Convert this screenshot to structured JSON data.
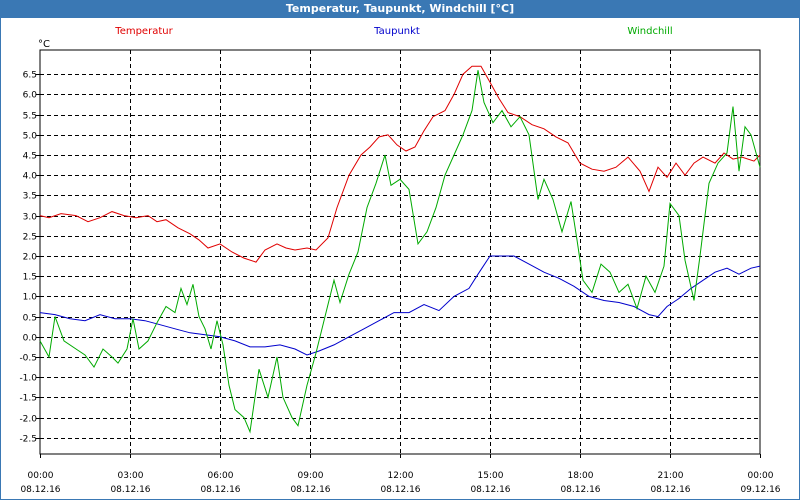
{
  "chart_data": {
    "type": "line",
    "title": "Temperatur, Taupunkt, Windchill [°C]",
    "ylabel": "°C",
    "ylim": [
      -2.9,
      7.1
    ],
    "yticks": [
      "6.5",
      "6.0",
      "5.5",
      "5.0",
      "4.5",
      "4.0",
      "3.5",
      "3.0",
      "2.5",
      "2.0",
      "1.5",
      "1.0",
      "0.5",
      "0.0",
      "-0.5",
      "-1.0",
      "-1.5",
      "-2.0",
      "-2.5"
    ],
    "xlim": [
      0,
      24
    ],
    "xticks": [
      {
        "time": "00:00",
        "date": "08.12.16"
      },
      {
        "time": "03:00",
        "date": "08.12.16"
      },
      {
        "time": "06:00",
        "date": "08.12.16"
      },
      {
        "time": "09:00",
        "date": "08.12.16"
      },
      {
        "time": "12:00",
        "date": "08.12.16"
      },
      {
        "time": "15:00",
        "date": "08.12.16"
      },
      {
        "time": "18:00",
        "date": "08.12.16"
      },
      {
        "time": "21:00",
        "date": "08.12.16"
      },
      {
        "time": "00:00",
        "date": "09.12.16"
      }
    ],
    "grid": true,
    "series": [
      {
        "name": "Temperatur",
        "color": "#e00000",
        "points": [
          [
            0,
            3.0
          ],
          [
            0.3,
            2.95
          ],
          [
            0.7,
            3.05
          ],
          [
            1.2,
            3.0
          ],
          [
            1.6,
            2.85
          ],
          [
            2.0,
            2.95
          ],
          [
            2.4,
            3.1
          ],
          [
            2.8,
            3.0
          ],
          [
            3.2,
            2.95
          ],
          [
            3.6,
            3.0
          ],
          [
            3.9,
            2.85
          ],
          [
            4.2,
            2.9
          ],
          [
            4.6,
            2.7
          ],
          [
            5.0,
            2.55
          ],
          [
            5.3,
            2.4
          ],
          [
            5.6,
            2.2
          ],
          [
            6.0,
            2.3
          ],
          [
            6.4,
            2.1
          ],
          [
            6.8,
            1.95
          ],
          [
            7.2,
            1.85
          ],
          [
            7.5,
            2.15
          ],
          [
            7.9,
            2.3
          ],
          [
            8.2,
            2.2
          ],
          [
            8.5,
            2.15
          ],
          [
            8.9,
            2.2
          ],
          [
            9.2,
            2.15
          ],
          [
            9.6,
            2.45
          ],
          [
            9.9,
            3.2
          ],
          [
            10.3,
            4.0
          ],
          [
            10.7,
            4.5
          ],
          [
            11.0,
            4.7
          ],
          [
            11.3,
            4.95
          ],
          [
            11.6,
            5.0
          ],
          [
            11.9,
            4.75
          ],
          [
            12.2,
            4.6
          ],
          [
            12.5,
            4.7
          ],
          [
            12.8,
            5.1
          ],
          [
            13.1,
            5.45
          ],
          [
            13.5,
            5.6
          ],
          [
            13.8,
            6.0
          ],
          [
            14.1,
            6.5
          ],
          [
            14.4,
            6.7
          ],
          [
            14.7,
            6.7
          ],
          [
            15.0,
            6.3
          ],
          [
            15.3,
            5.9
          ],
          [
            15.6,
            5.55
          ],
          [
            16.0,
            5.45
          ],
          [
            16.4,
            5.25
          ],
          [
            16.8,
            5.15
          ],
          [
            17.2,
            4.95
          ],
          [
            17.6,
            4.8
          ],
          [
            18.0,
            4.3
          ],
          [
            18.4,
            4.15
          ],
          [
            18.8,
            4.1
          ],
          [
            19.2,
            4.2
          ],
          [
            19.6,
            4.45
          ],
          [
            20.0,
            4.1
          ],
          [
            20.3,
            3.6
          ],
          [
            20.6,
            4.2
          ],
          [
            20.9,
            3.95
          ],
          [
            21.2,
            4.3
          ],
          [
            21.5,
            4.0
          ],
          [
            21.8,
            4.3
          ],
          [
            22.1,
            4.45
          ],
          [
            22.5,
            4.3
          ],
          [
            22.8,
            4.55
          ],
          [
            23.1,
            4.4
          ],
          [
            23.4,
            4.45
          ],
          [
            23.8,
            4.35
          ],
          [
            24.0,
            4.5
          ]
        ]
      },
      {
        "name": "Taupunkt",
        "color": "#0000cc",
        "points": [
          [
            0,
            0.6
          ],
          [
            0.5,
            0.55
          ],
          [
            1.0,
            0.45
          ],
          [
            1.5,
            0.4
          ],
          [
            2.0,
            0.55
          ],
          [
            2.5,
            0.45
          ],
          [
            3.0,
            0.45
          ],
          [
            3.5,
            0.4
          ],
          [
            4.0,
            0.3
          ],
          [
            4.5,
            0.2
          ],
          [
            5.0,
            0.1
          ],
          [
            5.5,
            0.05
          ],
          [
            6.0,
            0.0
          ],
          [
            6.5,
            -0.1
          ],
          [
            7.0,
            -0.25
          ],
          [
            7.5,
            -0.25
          ],
          [
            8.0,
            -0.2
          ],
          [
            8.5,
            -0.3
          ],
          [
            8.9,
            -0.45
          ],
          [
            9.3,
            -0.35
          ],
          [
            9.8,
            -0.2
          ],
          [
            10.3,
            0.0
          ],
          [
            10.8,
            0.2
          ],
          [
            11.3,
            0.4
          ],
          [
            11.8,
            0.6
          ],
          [
            12.3,
            0.6
          ],
          [
            12.8,
            0.8
          ],
          [
            13.3,
            0.65
          ],
          [
            13.8,
            1.0
          ],
          [
            14.3,
            1.2
          ],
          [
            14.6,
            1.55
          ],
          [
            15.0,
            2.0
          ],
          [
            15.4,
            2.0
          ],
          [
            15.8,
            2.0
          ],
          [
            16.3,
            1.8
          ],
          [
            16.8,
            1.6
          ],
          [
            17.3,
            1.45
          ],
          [
            17.8,
            1.25
          ],
          [
            18.3,
            1.0
          ],
          [
            18.8,
            0.9
          ],
          [
            19.3,
            0.85
          ],
          [
            19.8,
            0.75
          ],
          [
            20.3,
            0.55
          ],
          [
            20.6,
            0.5
          ],
          [
            20.9,
            0.75
          ],
          [
            21.3,
            0.95
          ],
          [
            21.7,
            1.2
          ],
          [
            22.1,
            1.4
          ],
          [
            22.5,
            1.6
          ],
          [
            22.9,
            1.7
          ],
          [
            23.3,
            1.55
          ],
          [
            23.7,
            1.7
          ],
          [
            24.0,
            1.75
          ]
        ]
      },
      {
        "name": "Windchill",
        "color": "#00aa00",
        "points": [
          [
            0,
            -0.1
          ],
          [
            0.3,
            -0.5
          ],
          [
            0.5,
            0.5
          ],
          [
            0.8,
            -0.1
          ],
          [
            1.2,
            -0.3
          ],
          [
            1.5,
            -0.45
          ],
          [
            1.8,
            -0.75
          ],
          [
            2.1,
            -0.3
          ],
          [
            2.4,
            -0.5
          ],
          [
            2.6,
            -0.65
          ],
          [
            2.9,
            -0.3
          ],
          [
            3.1,
            0.45
          ],
          [
            3.3,
            -0.3
          ],
          [
            3.6,
            -0.1
          ],
          [
            3.9,
            0.35
          ],
          [
            4.2,
            0.75
          ],
          [
            4.5,
            0.6
          ],
          [
            4.7,
            1.2
          ],
          [
            4.9,
            0.8
          ],
          [
            5.1,
            1.3
          ],
          [
            5.3,
            0.5
          ],
          [
            5.5,
            0.2
          ],
          [
            5.7,
            -0.3
          ],
          [
            5.9,
            0.4
          ],
          [
            6.1,
            -0.2
          ],
          [
            6.3,
            -1.2
          ],
          [
            6.5,
            -1.8
          ],
          [
            6.8,
            -2.0
          ],
          [
            7.0,
            -2.35
          ],
          [
            7.3,
            -0.8
          ],
          [
            7.6,
            -1.5
          ],
          [
            7.9,
            -0.5
          ],
          [
            8.1,
            -1.5
          ],
          [
            8.4,
            -2.0
          ],
          [
            8.6,
            -2.2
          ],
          [
            8.9,
            -1.2
          ],
          [
            9.2,
            -0.4
          ],
          [
            9.5,
            0.5
          ],
          [
            9.8,
            1.4
          ],
          [
            10.0,
            0.85
          ],
          [
            10.3,
            1.55
          ],
          [
            10.6,
            2.1
          ],
          [
            10.9,
            3.2
          ],
          [
            11.2,
            3.8
          ],
          [
            11.5,
            4.5
          ],
          [
            11.7,
            3.75
          ],
          [
            12.0,
            3.9
          ],
          [
            12.3,
            3.65
          ],
          [
            12.6,
            2.3
          ],
          [
            12.9,
            2.6
          ],
          [
            13.2,
            3.2
          ],
          [
            13.5,
            4.0
          ],
          [
            13.8,
            4.5
          ],
          [
            14.1,
            5.0
          ],
          [
            14.4,
            5.6
          ],
          [
            14.6,
            6.6
          ],
          [
            14.8,
            5.8
          ],
          [
            15.1,
            5.3
          ],
          [
            15.4,
            5.6
          ],
          [
            15.7,
            5.2
          ],
          [
            16.0,
            5.45
          ],
          [
            16.3,
            5.0
          ],
          [
            16.6,
            3.4
          ],
          [
            16.8,
            3.9
          ],
          [
            17.1,
            3.4
          ],
          [
            17.4,
            2.6
          ],
          [
            17.7,
            3.35
          ],
          [
            17.9,
            2.4
          ],
          [
            18.1,
            1.4
          ],
          [
            18.4,
            1.1
          ],
          [
            18.7,
            1.8
          ],
          [
            19.0,
            1.6
          ],
          [
            19.3,
            1.1
          ],
          [
            19.6,
            1.3
          ],
          [
            19.9,
            0.7
          ],
          [
            20.2,
            1.5
          ],
          [
            20.5,
            1.1
          ],
          [
            20.8,
            1.75
          ],
          [
            21.0,
            3.3
          ],
          [
            21.3,
            3.0
          ],
          [
            21.5,
            1.9
          ],
          [
            21.8,
            0.9
          ],
          [
            22.0,
            2.0
          ],
          [
            22.3,
            3.8
          ],
          [
            22.6,
            4.3
          ],
          [
            22.9,
            4.55
          ],
          [
            23.1,
            5.7
          ],
          [
            23.3,
            4.1
          ],
          [
            23.5,
            5.2
          ],
          [
            23.7,
            5.0
          ],
          [
            24.0,
            4.2
          ]
        ]
      }
    ]
  }
}
